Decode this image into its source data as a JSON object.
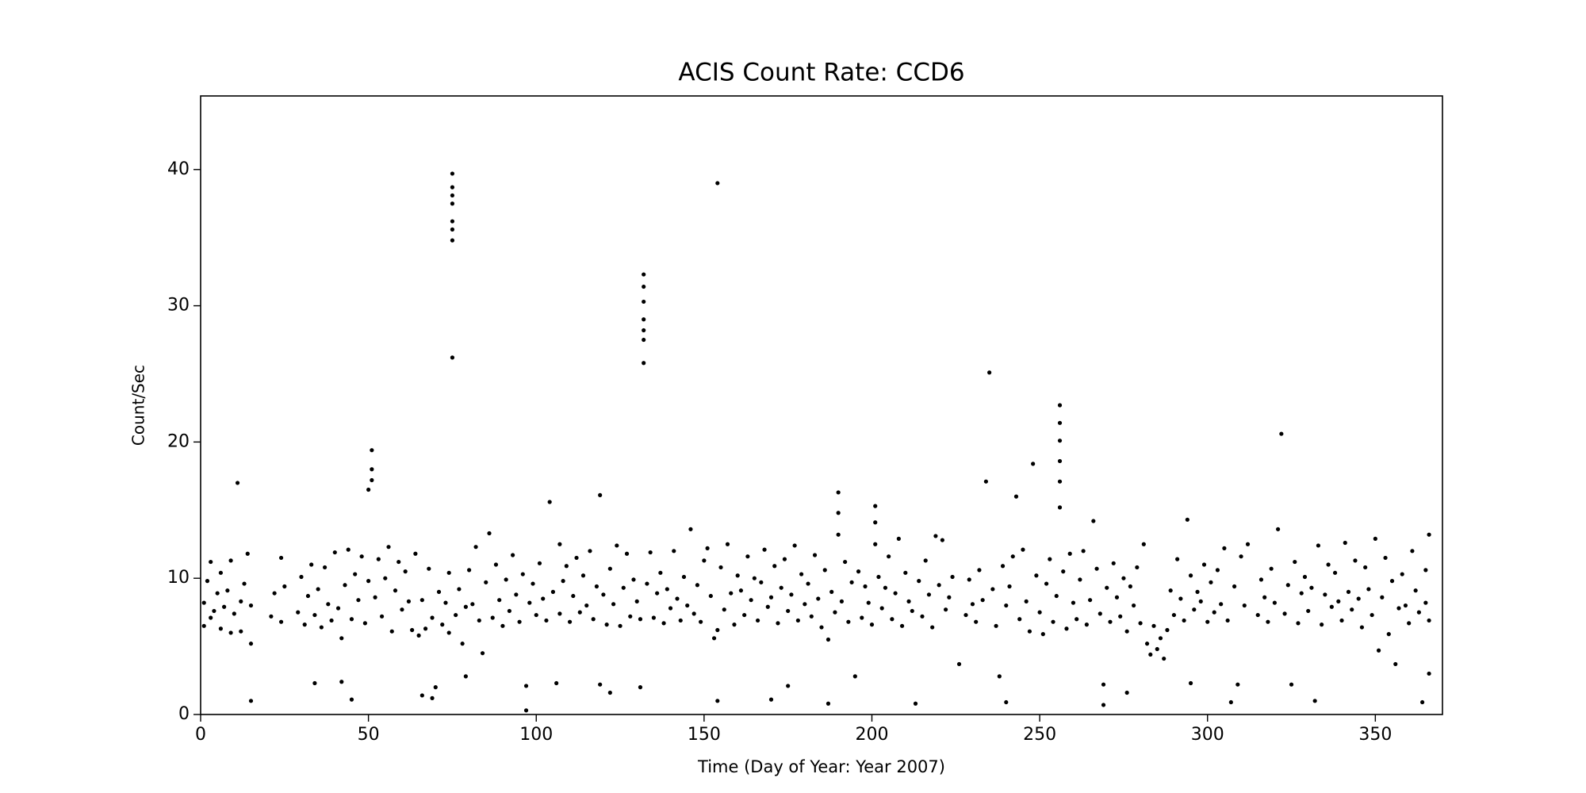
{
  "chart_data": {
    "type": "scatter",
    "title": "ACIS Count Rate: CCD6",
    "x_label": "Time (Day of Year: Year 2007)",
    "y_label": "Count/Sec",
    "color": "#000000",
    "xlim": [
      0,
      370
    ],
    "ylim": [
      0,
      45.4
    ],
    "xticks": [
      0,
      50,
      100,
      150,
      200,
      250,
      300,
      350
    ],
    "yticks": [
      0,
      10,
      20,
      30,
      40
    ],
    "x": [
      1,
      1,
      2,
      3,
      3,
      4,
      5,
      6,
      6,
      7,
      8,
      9,
      9,
      10,
      11,
      12,
      12,
      13,
      14,
      15,
      15,
      15,
      21,
      22,
      24,
      24,
      25,
      29,
      30,
      31,
      32,
      33,
      34,
      34,
      35,
      36,
      37,
      38,
      39,
      40,
      41,
      42,
      42,
      43,
      44,
      45,
      45,
      46,
      47,
      48,
      49,
      50,
      50,
      51,
      51,
      51,
      52,
      53,
      54,
      55,
      56,
      57,
      58,
      59,
      60,
      61,
      62,
      63,
      64,
      65,
      66,
      66,
      67,
      68,
      69,
      69,
      70,
      71,
      72,
      73,
      74,
      74,
      75,
      75,
      75,
      75,
      75,
      75,
      75,
      75,
      76,
      77,
      78,
      79,
      79,
      80,
      81,
      82,
      83,
      84,
      85,
      86,
      87,
      88,
      89,
      90,
      91,
      92,
      93,
      94,
      95,
      96,
      97,
      97,
      98,
      99,
      100,
      101,
      102,
      103,
      104,
      105,
      106,
      107,
      107,
      108,
      109,
      110,
      111,
      112,
      113,
      114,
      115,
      116,
      117,
      118,
      119,
      119,
      120,
      121,
      122,
      122,
      123,
      124,
      125,
      126,
      127,
      128,
      129,
      130,
      131,
      131,
      132,
      132,
      132,
      132,
      132,
      132,
      132,
      133,
      134,
      135,
      136,
      137,
      138,
      139,
      140,
      141,
      142,
      143,
      144,
      145,
      146,
      147,
      148,
      149,
      150,
      151,
      152,
      153,
      154,
      154,
      154,
      155,
      156,
      157,
      158,
      159,
      160,
      161,
      162,
      163,
      164,
      165,
      166,
      167,
      168,
      169,
      170,
      170,
      171,
      172,
      173,
      174,
      175,
      175,
      176,
      177,
      178,
      179,
      180,
      181,
      182,
      183,
      184,
      185,
      186,
      187,
      187,
      188,
      189,
      190,
      190,
      190,
      191,
      192,
      193,
      194,
      195,
      196,
      197,
      198,
      199,
      200,
      201,
      201,
      201,
      202,
      203,
      204,
      205,
      206,
      207,
      208,
      209,
      210,
      211,
      212,
      213,
      214,
      215,
      216,
      217,
      218,
      219,
      220,
      221,
      222,
      223,
      224,
      226,
      228,
      229,
      230,
      231,
      232,
      233,
      234,
      235,
      236,
      237,
      238,
      239,
      240,
      240,
      241,
      242,
      243,
      244,
      245,
      246,
      247,
      248,
      249,
      250,
      251,
      252,
      253,
      254,
      255,
      256,
      256,
      256,
      256,
      256,
      256,
      257,
      258,
      259,
      260,
      261,
      262,
      263,
      264,
      265,
      266,
      267,
      268,
      269,
      269,
      270,
      271,
      272,
      273,
      274,
      275,
      276,
      276,
      277,
      278,
      279,
      280,
      281,
      282,
      283,
      284,
      285,
      286,
      287,
      288,
      289,
      290,
      291,
      292,
      293,
      294,
      295,
      295,
      296,
      297,
      298,
      299,
      300,
      301,
      302,
      303,
      304,
      305,
      306,
      307,
      308,
      309,
      310,
      311,
      312,
      315,
      316,
      317,
      318,
      319,
      320,
      321,
      322,
      323,
      324,
      325,
      326,
      327,
      328,
      329,
      330,
      331,
      332,
      333,
      334,
      335,
      336,
      337,
      338,
      339,
      340,
      341,
      342,
      343,
      344,
      345,
      346,
      347,
      348,
      349,
      350,
      351,
      352,
      353,
      354,
      355,
      356,
      357,
      358,
      359,
      360,
      361,
      362,
      363,
      364,
      365,
      365,
      366,
      366,
      366
    ],
    "values": [
      8.2,
      6.5,
      9.8,
      7.1,
      11.2,
      7.6,
      8.9,
      6.3,
      10.4,
      7.9,
      9.1,
      6.0,
      11.3,
      7.4,
      17.0,
      8.3,
      6.1,
      9.6,
      11.8,
      5.2,
      8.0,
      1.0,
      7.2,
      8.9,
      11.5,
      6.8,
      9.4,
      7.5,
      10.1,
      6.6,
      8.7,
      11.0,
      7.3,
      2.3,
      9.2,
      6.4,
      10.8,
      8.1,
      6.9,
      11.9,
      7.8,
      5.6,
      2.4,
      9.5,
      12.1,
      7.0,
      1.1,
      10.3,
      8.4,
      11.6,
      6.7,
      9.8,
      16.5,
      18.0,
      19.4,
      17.2,
      8.6,
      11.4,
      7.2,
      10.0,
      12.3,
      6.1,
      9.1,
      11.2,
      7.7,
      10.5,
      8.3,
      6.2,
      11.8,
      5.8,
      8.4,
      1.4,
      6.3,
      10.7,
      1.2,
      7.1,
      2.0,
      9.0,
      6.6,
      8.2,
      6.0,
      10.4,
      34.8,
      36.2,
      37.5,
      38.7,
      39.7,
      26.2,
      35.6,
      38.1,
      7.3,
      9.2,
      5.2,
      2.8,
      7.9,
      10.6,
      8.1,
      12.3,
      6.9,
      4.5,
      9.7,
      13.3,
      7.1,
      11.0,
      8.4,
      6.5,
      9.9,
      7.6,
      11.7,
      8.8,
      6.8,
      10.3,
      2.1,
      0.3,
      8.2,
      9.6,
      7.3,
      11.1,
      8.5,
      6.9,
      15.6,
      9.0,
      2.3,
      12.5,
      7.4,
      9.8,
      10.9,
      6.8,
      8.7,
      11.5,
      7.5,
      10.2,
      8.0,
      12.0,
      7.0,
      9.4,
      2.2,
      16.1,
      8.8,
      6.6,
      1.6,
      10.7,
      8.1,
      12.4,
      6.5,
      9.3,
      11.8,
      7.2,
      9.9,
      8.3,
      2.0,
      7.0,
      25.8,
      27.5,
      29.0,
      30.3,
      31.4,
      32.3,
      28.2,
      9.6,
      11.9,
      7.1,
      8.9,
      10.4,
      6.7,
      9.2,
      7.8,
      12.0,
      8.5,
      6.9,
      10.1,
      8.0,
      13.6,
      7.4,
      9.5,
      6.8,
      11.3,
      12.2,
      8.7,
      5.6,
      39.0,
      1.0,
      6.2,
      10.8,
      7.7,
      12.5,
      8.9,
      6.6,
      10.2,
      9.1,
      7.3,
      11.6,
      8.4,
      10.0,
      6.9,
      9.7,
      12.1,
      7.9,
      1.1,
      8.6,
      10.9,
      6.7,
      9.3,
      11.4,
      2.1,
      7.6,
      8.8,
      12.4,
      6.9,
      10.3,
      8.1,
      9.6,
      7.2,
      11.7,
      8.5,
      6.4,
      10.6,
      0.8,
      5.5,
      9.0,
      7.5,
      13.2,
      14.8,
      16.3,
      8.3,
      11.2,
      6.8,
      9.7,
      2.8,
      10.5,
      7.1,
      9.4,
      8.2,
      6.6,
      12.5,
      14.1,
      15.3,
      10.1,
      7.8,
      9.3,
      11.6,
      7.0,
      8.9,
      12.9,
      6.5,
      10.4,
      8.3,
      7.6,
      0.8,
      9.8,
      7.2,
      11.3,
      8.8,
      6.4,
      13.1,
      9.5,
      12.8,
      7.7,
      8.6,
      10.1,
      3.7,
      7.3,
      9.9,
      8.1,
      6.8,
      10.6,
      8.4,
      17.1,
      25.1,
      9.2,
      6.5,
      2.8,
      10.9,
      8.0,
      0.9,
      9.4,
      11.6,
      16.0,
      7.0,
      12.1,
      8.3,
      6.1,
      18.4,
      10.2,
      7.5,
      5.9,
      9.6,
      11.4,
      6.8,
      8.7,
      15.2,
      17.1,
      18.6,
      20.1,
      21.4,
      22.7,
      10.5,
      6.3,
      11.8,
      8.2,
      7.0,
      9.9,
      12.0,
      6.6,
      8.4,
      14.2,
      10.7,
      7.4,
      2.2,
      0.7,
      9.3,
      6.8,
      11.1,
      8.6,
      7.2,
      10.0,
      1.6,
      6.1,
      9.4,
      8.0,
      10.8,
      6.7,
      12.5,
      5.2,
      4.4,
      6.5,
      4.8,
      5.6,
      4.1,
      6.2,
      9.1,
      7.3,
      11.4,
      8.5,
      6.9,
      14.3,
      2.3,
      10.2,
      7.7,
      9.0,
      8.3,
      11.0,
      6.8,
      9.7,
      7.5,
      10.6,
      8.1,
      12.2,
      6.9,
      0.9,
      9.4,
      2.2,
      11.6,
      8.0,
      12.5,
      7.3,
      9.9,
      8.6,
      6.8,
      10.7,
      8.2,
      13.6,
      20.6,
      7.4,
      9.5,
      2.2,
      11.2,
      6.7,
      8.9,
      10.1,
      7.6,
      9.3,
      1.0,
      12.4,
      6.6,
      8.8,
      11.0,
      7.9,
      10.4,
      8.3,
      6.9,
      12.6,
      9.0,
      7.7,
      11.3,
      8.5,
      6.4,
      10.8,
      9.2,
      7.3,
      12.9,
      4.7,
      8.6,
      11.5,
      5.9,
      9.8,
      3.7,
      7.8,
      10.3,
      8.0,
      6.7,
      12.0,
      9.1,
      7.5,
      0.9,
      10.6,
      8.2,
      3.0,
      13.2,
      6.9
    ]
  }
}
